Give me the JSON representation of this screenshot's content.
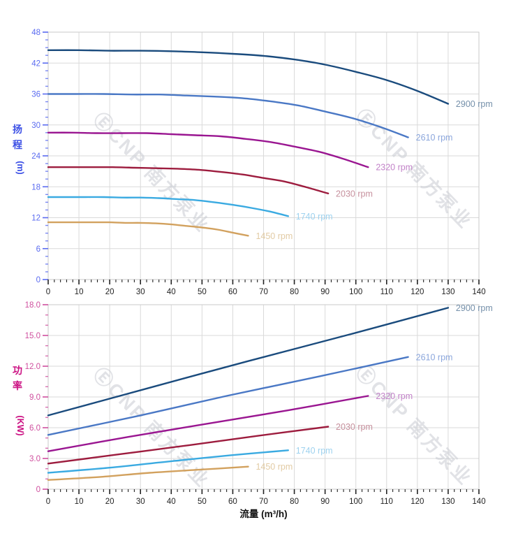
{
  "watermark": {
    "logo_glyph": "Ⓔ",
    "text": "CNP 南方泵业",
    "color": "#c9ccd3",
    "opacity": 0.55
  },
  "x_axis": {
    "title": "流量 (m³/h)",
    "title_color": "#111111",
    "tick_color": "#222222",
    "min": 0,
    "max": 140,
    "major_step": 10,
    "minor_step": 2,
    "tick_labels": [
      "0",
      "10",
      "20",
      "30",
      "40",
      "50",
      "60",
      "70",
      "80",
      "90",
      "100",
      "110",
      "120",
      "130",
      "140"
    ]
  },
  "grid_color": "#dadada",
  "border_color": "#c9c9c9",
  "chart_data": [
    {
      "type": "line",
      "title": "",
      "xlabel": "流量 (m³/h)",
      "ylabel": "扬程 (m)",
      "ylabel_stack": [
        "扬",
        "程"
      ],
      "ylabel_unit": "(m)",
      "ylabel_color": "#3b4fe5",
      "ytick_color": "#5a6bf0",
      "xlim": [
        0,
        140
      ],
      "ylim": [
        0,
        48
      ],
      "y_major_step": 6,
      "y_minor_step": 1.5,
      "y_tick_labels": [
        "0",
        "6",
        "12",
        "18",
        "24",
        "30",
        "36",
        "42",
        "48"
      ],
      "grid": true,
      "legend": "labels at line ends",
      "series": [
        {
          "name": "2900 rpm",
          "color": "#1a4b7d",
          "label_color": "#7590aa",
          "points": [
            [
              0,
              44.5
            ],
            [
              10,
              44.5
            ],
            [
              20,
              44.4
            ],
            [
              30,
              44.4
            ],
            [
              40,
              44.3
            ],
            [
              50,
              44.1
            ],
            [
              60,
              43.8
            ],
            [
              70,
              43.4
            ],
            [
              80,
              42.7
            ],
            [
              90,
              41.7
            ],
            [
              100,
              40.3
            ],
            [
              110,
              38.7
            ],
            [
              120,
              36.6
            ],
            [
              130,
              34.1
            ]
          ]
        },
        {
          "name": "2610 rpm",
          "color": "#4a78c5",
          "label_color": "#8ba6dc",
          "points": [
            [
              0,
              36.0
            ],
            [
              9,
              36.0
            ],
            [
              18,
              36.0
            ],
            [
              27,
              35.9
            ],
            [
              36,
              35.9
            ],
            [
              45,
              35.7
            ],
            [
              54,
              35.5
            ],
            [
              63,
              35.2
            ],
            [
              72,
              34.6
            ],
            [
              81,
              33.8
            ],
            [
              90,
              32.6
            ],
            [
              99,
              31.3
            ],
            [
              108,
              29.6
            ],
            [
              117,
              27.6
            ]
          ]
        },
        {
          "name": "2320 rpm",
          "color": "#9a1691",
          "label_color": "#c282c8",
          "points": [
            [
              0,
              28.5
            ],
            [
              8,
              28.5
            ],
            [
              16,
              28.4
            ],
            [
              24,
              28.4
            ],
            [
              32,
              28.4
            ],
            [
              40,
              28.2
            ],
            [
              48,
              28.0
            ],
            [
              56,
              27.8
            ],
            [
              64,
              27.3
            ],
            [
              72,
              26.7
            ],
            [
              80,
              25.8
            ],
            [
              88,
              24.8
            ],
            [
              96,
              23.4
            ],
            [
              104,
              21.8
            ]
          ]
        },
        {
          "name": "2030 rpm",
          "color": "#9d1c3e",
          "label_color": "#c6909d",
          "points": [
            [
              0,
              21.8
            ],
            [
              7,
              21.8
            ],
            [
              14,
              21.8
            ],
            [
              21,
              21.8
            ],
            [
              28,
              21.7
            ],
            [
              35,
              21.6
            ],
            [
              42,
              21.5
            ],
            [
              49,
              21.3
            ],
            [
              56,
              20.9
            ],
            [
              63,
              20.4
            ],
            [
              70,
              19.7
            ],
            [
              77,
              19.0
            ],
            [
              84,
              17.9
            ],
            [
              91,
              16.7
            ]
          ]
        },
        {
          "name": "1740 rpm",
          "color": "#3aaae1",
          "label_color": "#9ed2ef",
          "points": [
            [
              0,
              16.0
            ],
            [
              6,
              16.0
            ],
            [
              12,
              16.0
            ],
            [
              18,
              16.0
            ],
            [
              24,
              15.9
            ],
            [
              30,
              15.9
            ],
            [
              36,
              15.8
            ],
            [
              42,
              15.6
            ],
            [
              48,
              15.4
            ],
            [
              54,
              15.0
            ],
            [
              60,
              14.5
            ],
            [
              66,
              13.9
            ],
            [
              72,
              13.2
            ],
            [
              78,
              12.3
            ]
          ]
        },
        {
          "name": "1450 rpm",
          "color": "#d2a15e",
          "label_color": "#e2cba4",
          "points": [
            [
              0,
              11.1
            ],
            [
              5,
              11.1
            ],
            [
              10,
              11.1
            ],
            [
              15,
              11.1
            ],
            [
              20,
              11.1
            ],
            [
              25,
              11.0
            ],
            [
              30,
              11.0
            ],
            [
              35,
              10.9
            ],
            [
              40,
              10.7
            ],
            [
              45,
              10.4
            ],
            [
              50,
              10.1
            ],
            [
              55,
              9.7
            ],
            [
              60,
              9.1
            ],
            [
              65,
              8.5
            ]
          ]
        }
      ]
    },
    {
      "type": "line",
      "title": "",
      "xlabel": "流量 (m³/h)",
      "ylabel": "功率 (KW)",
      "ylabel_stack": [
        "功",
        "率"
      ],
      "ylabel_unit": "(KW)",
      "ylabel_color": "#cb1082",
      "ytick_color": "#cf4f9e",
      "xlim": [
        0,
        140
      ],
      "ylim": [
        0,
        18
      ],
      "y_major_step": 3,
      "y_minor_step": 1,
      "y_tick_labels": [
        "0",
        "3.0",
        "6.0",
        "9.0",
        "12.0",
        "15.0",
        "18.0"
      ],
      "grid": true,
      "legend": "labels at line ends",
      "series": [
        {
          "name": "2900 rpm",
          "color": "#1a4b7d",
          "label_color": "#7590aa",
          "points": [
            [
              0,
              7.2
            ],
            [
              33,
              9.9
            ],
            [
              65,
              12.5
            ],
            [
              98,
              15.1
            ],
            [
              130,
              17.7
            ]
          ]
        },
        {
          "name": "2610 rpm",
          "color": "#4a78c5",
          "label_color": "#8ba6dc",
          "points": [
            [
              0,
              5.3
            ],
            [
              30,
              7.2
            ],
            [
              58,
              9.1
            ],
            [
              88,
              11.0
            ],
            [
              117,
              12.9
            ]
          ]
        },
        {
          "name": "2320 rpm",
          "color": "#9a1691",
          "label_color": "#c282c8",
          "points": [
            [
              0,
              3.7
            ],
            [
              26,
              5.1
            ],
            [
              52,
              6.4
            ],
            [
              78,
              7.7
            ],
            [
              104,
              9.1
            ]
          ]
        },
        {
          "name": "2030 rpm",
          "color": "#9d1c3e",
          "label_color": "#c6909d",
          "points": [
            [
              0,
              2.5
            ],
            [
              23,
              3.4
            ],
            [
              46,
              4.3
            ],
            [
              68,
              5.2
            ],
            [
              91,
              6.1
            ]
          ]
        },
        {
          "name": "1740 rpm",
          "color": "#3aaae1",
          "label_color": "#9ed2ef",
          "points": [
            [
              0,
              1.6
            ],
            [
              20,
              2.1
            ],
            [
              39,
              2.7
            ],
            [
              59,
              3.3
            ],
            [
              78,
              3.8
            ]
          ]
        },
        {
          "name": "1450 rpm",
          "color": "#d2a15e",
          "label_color": "#e2cba4",
          "points": [
            [
              0,
              0.9
            ],
            [
              17,
              1.2
            ],
            [
              33,
              1.6
            ],
            [
              49,
              1.9
            ],
            [
              65,
              2.2
            ]
          ]
        }
      ]
    }
  ]
}
